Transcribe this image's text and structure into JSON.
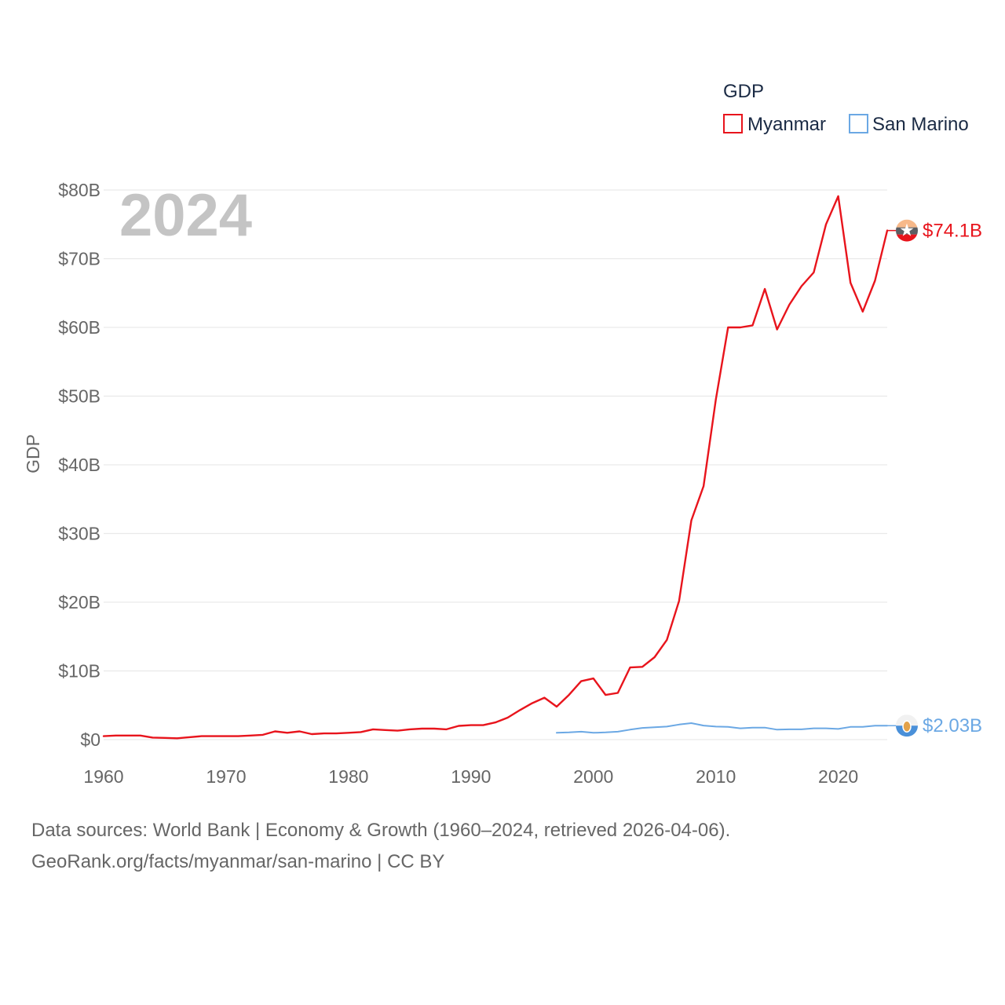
{
  "chart_data": {
    "type": "line",
    "title": "",
    "legend_title": "GDP",
    "legend_position": "top-right",
    "ylabel": "GDP",
    "xlabel": "",
    "year_label": "2024",
    "xlim": [
      1960,
      2024
    ],
    "ylim": [
      0,
      80
    ],
    "y_unit": "billion USD",
    "x_ticks": [
      1960,
      1970,
      1980,
      1990,
      2000,
      2010,
      2020
    ],
    "x_tick_labels": [
      "1960",
      "1970",
      "1980",
      "1990",
      "2000",
      "2010",
      "2020"
    ],
    "y_ticks": [
      0,
      10,
      20,
      30,
      40,
      50,
      60,
      70,
      80
    ],
    "y_tick_labels": [
      "$0",
      "$10B",
      "$20B",
      "$30B",
      "$40B",
      "$50B",
      "$60B",
      "$70B",
      "$80B"
    ],
    "grid": true,
    "series": [
      {
        "name": "Myanmar",
        "color": "#e8141c",
        "end_label": "$74.1B",
        "flag_icon": "myanmar-flag-icon",
        "points": [
          [
            1960,
            0.5
          ],
          [
            1961,
            0.6
          ],
          [
            1962,
            0.6
          ],
          [
            1963,
            0.6
          ],
          [
            1964,
            0.3
          ],
          [
            1965,
            0.25
          ],
          [
            1966,
            0.2
          ],
          [
            1967,
            0.35
          ],
          [
            1968,
            0.5
          ],
          [
            1969,
            0.5
          ],
          [
            1970,
            0.5
          ],
          [
            1971,
            0.5
          ],
          [
            1972,
            0.6
          ],
          [
            1973,
            0.7
          ],
          [
            1974,
            1.2
          ],
          [
            1975,
            1.0
          ],
          [
            1976,
            1.2
          ],
          [
            1977,
            0.8
          ],
          [
            1978,
            0.9
          ],
          [
            1979,
            0.9
          ],
          [
            1980,
            1.0
          ],
          [
            1981,
            1.1
          ],
          [
            1982,
            1.5
          ],
          [
            1983,
            1.4
          ],
          [
            1984,
            1.3
          ],
          [
            1985,
            1.5
          ],
          [
            1986,
            1.6
          ],
          [
            1987,
            1.6
          ],
          [
            1988,
            1.5
          ],
          [
            1989,
            2.0
          ],
          [
            1990,
            2.1
          ],
          [
            1991,
            2.1
          ],
          [
            1992,
            2.5
          ],
          [
            1993,
            3.2
          ],
          [
            1994,
            4.3
          ],
          [
            1995,
            5.3
          ],
          [
            1996,
            6.1
          ],
          [
            1997,
            4.8
          ],
          [
            1998,
            6.5
          ],
          [
            1999,
            8.5
          ],
          [
            2000,
            8.9
          ],
          [
            2001,
            6.5
          ],
          [
            2002,
            6.8
          ],
          [
            2003,
            10.5
          ],
          [
            2004,
            10.6
          ],
          [
            2005,
            12.0
          ],
          [
            2006,
            14.5
          ],
          [
            2007,
            20.2
          ],
          [
            2008,
            31.9
          ],
          [
            2009,
            36.9
          ],
          [
            2010,
            49.5
          ],
          [
            2011,
            60.0
          ],
          [
            2012,
            60.0
          ],
          [
            2013,
            60.3
          ],
          [
            2014,
            65.6
          ],
          [
            2015,
            59.7
          ],
          [
            2016,
            63.3
          ],
          [
            2017,
            66.0
          ],
          [
            2018,
            68.0
          ],
          [
            2019,
            75.0
          ],
          [
            2020,
            79.1
          ],
          [
            2021,
            66.5
          ],
          [
            2022,
            62.3
          ],
          [
            2023,
            66.8
          ],
          [
            2024,
            74.1
          ]
        ]
      },
      {
        "name": "San Marino",
        "color": "#6ba8e4",
        "end_label": "$2.03B",
        "flag_icon": "san-marino-flag-icon",
        "points": [
          [
            1997,
            1.0
          ],
          [
            1998,
            1.05
          ],
          [
            1999,
            1.15
          ],
          [
            2000,
            1.0
          ],
          [
            2001,
            1.05
          ],
          [
            2002,
            1.15
          ],
          [
            2003,
            1.45
          ],
          [
            2004,
            1.7
          ],
          [
            2005,
            1.8
          ],
          [
            2006,
            1.9
          ],
          [
            2007,
            2.2
          ],
          [
            2008,
            2.4
          ],
          [
            2009,
            2.05
          ],
          [
            2010,
            1.9
          ],
          [
            2011,
            1.85
          ],
          [
            2012,
            1.65
          ],
          [
            2013,
            1.75
          ],
          [
            2014,
            1.75
          ],
          [
            2015,
            1.45
          ],
          [
            2016,
            1.5
          ],
          [
            2017,
            1.5
          ],
          [
            2018,
            1.65
          ],
          [
            2019,
            1.65
          ],
          [
            2020,
            1.55
          ],
          [
            2021,
            1.85
          ],
          [
            2022,
            1.85
          ],
          [
            2023,
            2.03
          ],
          [
            2024,
            2.03
          ]
        ]
      }
    ]
  },
  "source": {
    "line1": "Data sources: World Bank | Economy & Growth (1960–2024, retrieved 2026-04-06).",
    "line2": "GeoRank.org/facts/myanmar/san-marino | CC BY"
  }
}
